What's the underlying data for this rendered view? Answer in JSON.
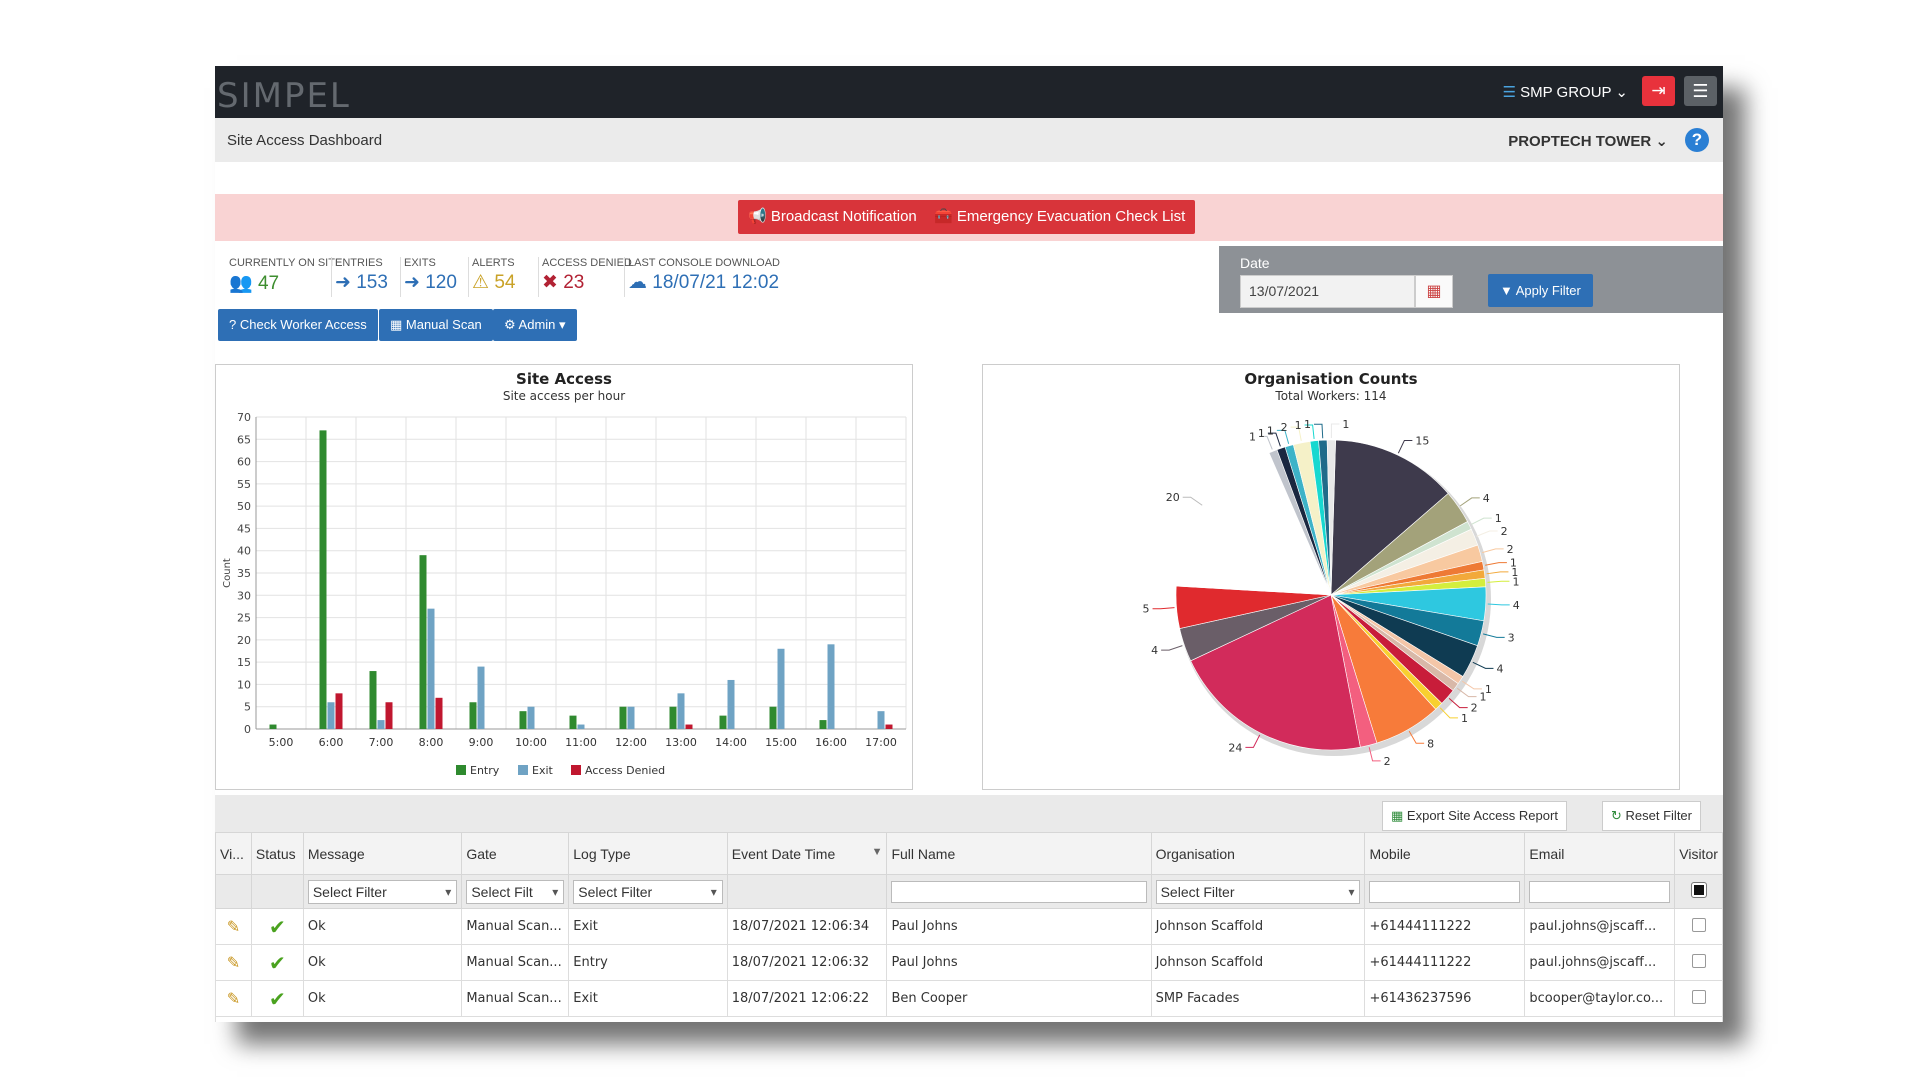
{
  "app": {
    "logo": "SIMPEL"
  },
  "header": {
    "org_menu": "SMP GROUP ⌄",
    "logout_icon": "logout-icon",
    "menu_icon": "hamburger-icon"
  },
  "subheader": {
    "title": "Site Access Dashboard",
    "site": "PROPTECH TOWER ⌄",
    "help": "?"
  },
  "alert_bar": {
    "broadcast": "📢 Broadcast Notification",
    "evacuation": "🧰 Emergency Evacuation Check List"
  },
  "stats": [
    {
      "label": "CURRENTLY ON SITE",
      "icon": "👥",
      "value": "47",
      "color": "#3e8e2f"
    },
    {
      "label": "ENTRIES",
      "icon": "➜",
      "value": "153",
      "color": "#2e6fb5"
    },
    {
      "label": "EXITS",
      "icon": "➜",
      "value": "120",
      "color": "#2e6fb5"
    },
    {
      "label": "ALERTS",
      "icon": "⚠",
      "value": "54",
      "color": "#c9a227"
    },
    {
      "label": "ACCESS DENIED",
      "icon": "✖",
      "value": "23",
      "color": "#b22234"
    },
    {
      "label": "LAST CONSOLE DOWNLOAD",
      "icon": "☁",
      "value": "18/07/21 12:02",
      "color": "#2e6fb5"
    }
  ],
  "actions": {
    "check_worker": "? Check Worker Access",
    "manual_scan": "▦ Manual Scan",
    "admin": "⚙ Admin ▾"
  },
  "date_filter": {
    "label": "Date",
    "value": "13/07/2021",
    "apply": "▼ Apply Filter"
  },
  "chart_data": [
    {
      "type": "bar",
      "title": "Site Access",
      "subtitle": "Site access per hour",
      "ylabel": "Count",
      "xlabel": "",
      "ylim": [
        0,
        70
      ],
      "yticks": [
        0,
        5,
        10,
        15,
        20,
        25,
        30,
        35,
        40,
        45,
        50,
        55,
        60,
        65,
        70
      ],
      "categories": [
        "5:00",
        "6:00",
        "7:00",
        "8:00",
        "9:00",
        "10:00",
        "11:00",
        "12:00",
        "13:00",
        "14:00",
        "15:00",
        "16:00",
        "17:00"
      ],
      "series": [
        {
          "name": "Entry",
          "color": "#2f8a2f",
          "values": [
            1,
            67,
            13,
            39,
            6,
            4,
            3,
            5,
            5,
            3,
            5,
            2,
            0
          ]
        },
        {
          "name": "Exit",
          "color": "#6fa3c4",
          "values": [
            0,
            6,
            2,
            27,
            14,
            5,
            1,
            5,
            8,
            11,
            18,
            19,
            4
          ]
        },
        {
          "name": "Access Denied",
          "color": "#c0172f",
          "values": [
            0,
            8,
            6,
            7,
            0,
            0,
            0,
            0,
            1,
            0,
            0,
            0,
            1
          ]
        }
      ],
      "legend": "bottom"
    },
    {
      "type": "pie",
      "title": "Organisation Counts",
      "subtitle": "Total Workers: 114",
      "values": [
        15,
        4,
        1,
        2,
        2,
        1,
        1,
        1,
        4,
        3,
        4,
        1,
        1,
        2,
        1,
        8,
        2,
        24,
        4,
        5,
        20,
        1,
        1,
        1,
        2,
        1,
        1,
        1
      ],
      "colors": [
        "#3e3a4c",
        "#a3a27a",
        "#cfe3d0",
        "#f4efe4",
        "#f8c9a0",
        "#ee7a35",
        "#f2a93b",
        "#d4ee3d",
        "#2ec8e0",
        "#137a99",
        "#0f3b52",
        "#f4c6a8",
        "#d8b8a8",
        "#c81d3a",
        "#f8d030",
        "#f77b3a",
        "#f35f7f",
        "#d22b5b",
        "#6a5e68",
        "#e02a2e",
        "#ffffff",
        "#c0c4cc",
        "#1a2740",
        "#3db3c8",
        "#f5f1c8",
        "#17d8d0",
        "#1f6b8a",
        "#e8e8e8"
      ],
      "legend": "none"
    }
  ],
  "grid": {
    "export_label": "Export Site Access Report",
    "reset_label": "Reset Filter",
    "columns": [
      "Vi...",
      "Status",
      "Message",
      "Gate",
      "Log Type",
      "Event Date Time",
      "Full Name",
      "Organisation",
      "Mobile",
      "Email",
      "Visitor"
    ],
    "filters": {
      "message": "Select Filter",
      "gate": "Select Filt",
      "log_type": "Select Filter",
      "organisation": "Select Filter"
    },
    "rows": [
      {
        "message": "Ok",
        "gate": "Manual Scan...",
        "log_type": "Exit",
        "datetime": "18/07/2021 12:06:34",
        "name": "Paul Johns",
        "org": "Johnson Scaffold",
        "mobile": "+61444111222",
        "email": "paul.johns@jscaff..."
      },
      {
        "message": "Ok",
        "gate": "Manual Scan...",
        "log_type": "Entry",
        "datetime": "18/07/2021 12:06:32",
        "name": "Paul Johns",
        "org": "Johnson Scaffold",
        "mobile": "+61444111222",
        "email": "paul.johns@jscaff..."
      },
      {
        "message": "Ok",
        "gate": "Manual Scan...",
        "log_type": "Exit",
        "datetime": "18/07/2021 12:06:22",
        "name": "Ben Cooper",
        "org": "SMP Facades",
        "mobile": "+61436237596",
        "email": "bcooper@taylor.co..."
      }
    ]
  }
}
